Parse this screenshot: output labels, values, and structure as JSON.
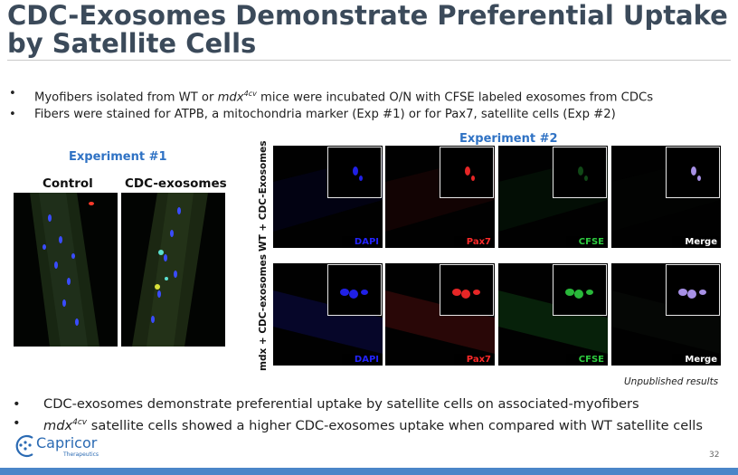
{
  "title": "CDC-Exosomes Demonstrate Preferential Uptake by Satellite Cells",
  "top_bullets": [
    {
      "pre": "Myofibers isolated from WT or ",
      "em": "mdx",
      "sup": "4cv",
      "post": " mice were incubated O/N with CFSE labeled exosomes from CDCs"
    },
    {
      "pre": "Fibers were stained for ATPB, a mitochondria marker (Exp #1) or for Pax7, satellite cells (Exp #2)",
      "em": "",
      "sup": "",
      "post": ""
    }
  ],
  "bullet_glyph": "•",
  "experiment1": {
    "title": "Experiment #1",
    "columns": [
      "Control",
      "CDC-exosomes"
    ]
  },
  "experiment2": {
    "title": "Experiment #2",
    "rows": [
      "WT + CDC-Exosomes",
      "mdx + CDC-exosomes"
    ],
    "channels": [
      {
        "label": "DAPI",
        "color": "#2323ff"
      },
      {
        "label": "Pax7",
        "color": "#ff2a2a"
      },
      {
        "label": "CFSE",
        "color": "#2ecc40"
      },
      {
        "label": "Merge",
        "color": "#ffffff"
      }
    ]
  },
  "unpublished": "Unpublished results",
  "bottom_bullets": [
    {
      "pre": "CDC-exosomes demonstrate preferential uptake by satellite cells on associated-myofibers",
      "em": "",
      "sup": "",
      "post": ""
    },
    {
      "pre": "",
      "em": "mdx",
      "sup": "4cv",
      "post": " satellite cells showed a higher CDC-exosomes uptake when compared with WT satellite cells"
    }
  ],
  "logo": {
    "name": "Capricor",
    "tagline": "Therapeutics"
  },
  "page_number": "32",
  "colors": {
    "title": "#3b4a5a",
    "accent": "#2f72c4",
    "footer": "#4a86c8"
  }
}
